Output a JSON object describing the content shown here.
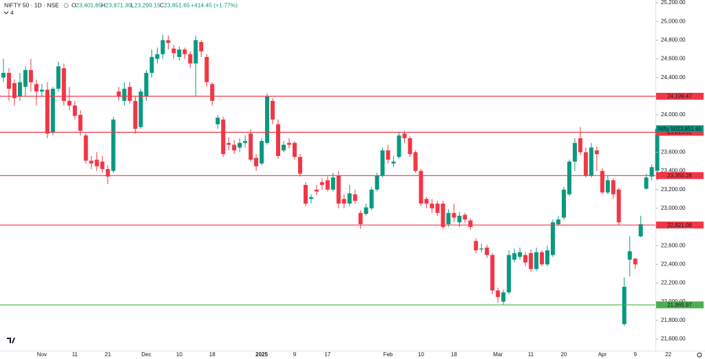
{
  "header": {
    "symbol": "NIFTY 50 · 1D · NSE",
    "open_label": "O",
    "open": "23,401.85",
    "high_label": "H",
    "high": "23,871.30",
    "low_label": "L",
    "low": "23,299.15",
    "close_label": "C",
    "close": "23,851.65",
    "change": "+414.45 (+1.77%)",
    "indicators_count": "4"
  },
  "chart_data": {
    "type": "candlestick",
    "up_color": "#089981",
    "down_color": "#f23645",
    "grid": false,
    "ylim": [
      21475,
      25230
    ],
    "yticks": [
      {
        "value": 21600,
        "label": "21,600.00"
      },
      {
        "value": 21800,
        "label": "21,800.00"
      },
      {
        "value": 22000,
        "label": "22,000.00"
      },
      {
        "value": 22200,
        "label": "22,200.00"
      },
      {
        "value": 22400,
        "label": "22,400.00"
      },
      {
        "value": 22600,
        "label": "22,600.00"
      },
      {
        "value": 22800,
        "label": "22,800.00"
      },
      {
        "value": 23000,
        "label": "23,000.00"
      },
      {
        "value": 23200,
        "label": "23,200.00"
      },
      {
        "value": 23400,
        "label": "23,400.00"
      },
      {
        "value": 23600,
        "label": "23,600.00"
      },
      {
        "value": 23800,
        "label": "23,800.00"
      },
      {
        "value": 24000,
        "label": "24,000.00"
      },
      {
        "value": 24200,
        "label": "24,200.00"
      },
      {
        "value": 24400,
        "label": "24,400.00"
      },
      {
        "value": 24600,
        "label": "24,600.00"
      },
      {
        "value": 24800,
        "label": "24,800.00"
      },
      {
        "value": 25000,
        "label": "25,000.00"
      },
      {
        "value": 25200,
        "label": "25,200.00"
      }
    ],
    "categories": [
      null,
      null,
      null,
      null,
      null,
      null,
      null,
      "Nov",
      null,
      null,
      null,
      null,
      null,
      "11",
      null,
      null,
      null,
      null,
      null,
      "21",
      null,
      null,
      null,
      null,
      null,
      null,
      "Dec",
      null,
      null,
      null,
      null,
      null,
      "10",
      null,
      null,
      null,
      null,
      null,
      "18",
      null,
      null,
      null,
      null,
      null,
      null,
      null,
      null,
      "2025",
      null,
      null,
      null,
      null,
      null,
      "9",
      null,
      null,
      null,
      null,
      null,
      "17",
      null,
      null,
      null,
      null,
      null,
      null,
      null,
      null,
      null,
      null,
      "Feb",
      null,
      null,
      null,
      null,
      null,
      "10",
      null,
      null,
      null,
      null,
      null,
      "18",
      null,
      null,
      null,
      null,
      null,
      null,
      null,
      "Mar",
      null,
      null,
      null,
      null,
      null,
      "11",
      null,
      null,
      null,
      null,
      null,
      "20",
      null,
      null,
      null,
      null,
      null,
      null,
      "Apr",
      null,
      null,
      null,
      null,
      null,
      "9",
      null,
      null,
      null,
      null,
      null,
      "22"
    ],
    "open": [
      24400,
      24450,
      24340,
      24200,
      24300,
      24480,
      24330,
      24250,
      24270,
      23810,
      24280,
      24500,
      24150,
      24100,
      24000,
      23780,
      23510,
      23520,
      23500,
      23420,
      23400,
      24250,
      24150,
      24300,
      24150,
      23870,
      24200,
      24450,
      24600,
      24650,
      24800,
      24710,
      24620,
      24700,
      24650,
      24550,
      24780,
      24620,
      24330,
      23900,
      23950,
      23700,
      23680,
      23650,
      23700,
      23800,
      23540,
      23480,
      23700,
      24150,
      23900,
      23620,
      23700,
      23700,
      23550,
      23250,
      23100,
      23200,
      23280,
      23300,
      23200,
      23350,
      23100,
      23050,
      23150,
      22950,
      22940,
      23000,
      23200,
      23350,
      23620,
      23480,
      23550,
      23800,
      23750,
      23600,
      23400,
      23100,
      23050,
      23050,
      23050,
      22830,
      22950,
      22850,
      22930,
      22870,
      22650,
      22560,
      22580,
      22500,
      22120,
      22000,
      22100,
      22450,
      22480,
      22500,
      22520,
      22350,
      22530,
      22400,
      22500,
      22830,
      22900,
      23150,
      23500,
      23750,
      23600,
      23350,
      23620,
      23400,
      23170,
      23300,
      23200,
      21760,
      22450,
      22460,
      22700,
      23210,
      23340,
      23401.85,
      null,
      null
    ],
    "high": [
      24600,
      24500,
      24380,
      24450,
      24520,
      24600,
      24380,
      24330,
      24350,
      24300,
      24570,
      24550,
      24300,
      24150,
      24050,
      23800,
      23560,
      23600,
      23560,
      23460,
      23980,
      24300,
      24350,
      24350,
      24200,
      24280,
      24480,
      24700,
      24720,
      24860,
      24850,
      24750,
      24730,
      24720,
      24680,
      24850,
      24800,
      24650,
      24350,
      24000,
      23980,
      23760,
      23730,
      23750,
      23780,
      23850,
      23580,
      23750,
      24230,
      24180,
      23950,
      23720,
      23750,
      23720,
      23580,
      23280,
      23150,
      23250,
      23320,
      23340,
      23380,
      23400,
      23150,
      23250,
      23200,
      22980,
      23050,
      23230,
      23380,
      23650,
      23680,
      23560,
      23810,
      23830,
      23770,
      23620,
      23420,
      23120,
      23100,
      23080,
      23080,
      22990,
      23050,
      22960,
      22950,
      22890,
      22680,
      22620,
      22610,
      22520,
      22150,
      22130,
      22550,
      22570,
      22580,
      22530,
      22560,
      22580,
      22550,
      22600,
      22880,
      22920,
      23230,
      23520,
      23750,
      23870,
      23650,
      23700,
      23660,
      23430,
      23350,
      23320,
      23220,
      22260,
      22700,
      22470,
      22920,
      23370,
      23470,
      23871.3,
      null,
      null
    ],
    "low": [
      24350,
      24150,
      24100,
      24150,
      24200,
      24250,
      24100,
      24200,
      23750,
      23780,
      24250,
      24100,
      24050,
      23950,
      23780,
      23480,
      23420,
      23400,
      23380,
      23260,
      23380,
      24150,
      24100,
      24120,
      23800,
      23850,
      24150,
      24400,
      24550,
      24600,
      24700,
      24600,
      24580,
      24600,
      24500,
      24200,
      24620,
      24300,
      24100,
      23850,
      23550,
      23620,
      23580,
      23600,
      23650,
      23500,
      23400,
      23460,
      23680,
      23900,
      23530,
      23600,
      23640,
      23520,
      23340,
      23020,
      23050,
      23140,
      23200,
      23180,
      23180,
      23000,
      23000,
      23020,
      23050,
      22780,
      22920,
      22980,
      23180,
      23330,
      23480,
      23440,
      23530,
      23700,
      23550,
      23380,
      23020,
      23000,
      22950,
      22920,
      22780,
      22800,
      22850,
      22800,
      22840,
      22770,
      22520,
      22530,
      22470,
      22080,
      21990,
      21970,
      22080,
      22420,
      22450,
      22380,
      22320,
      22330,
      22380,
      22380,
      22480,
      22810,
      22880,
      23130,
      23400,
      23570,
      23330,
      23330,
      23400,
      23150,
      23150,
      23100,
      22820,
      21740,
      22270,
      22350,
      22690,
      23200,
      23300,
      23299.15,
      null,
      null
    ],
    "close": [
      24450,
      24280,
      24180,
      24350,
      24480,
      24350,
      24250,
      24270,
      23800,
      24280,
      24520,
      24150,
      24100,
      23990,
      23830,
      23510,
      23480,
      23450,
      23420,
      23340,
      23950,
      24200,
      24280,
      24150,
      23850,
      24250,
      24450,
      24620,
      24650,
      24800,
      24770,
      24660,
      24700,
      24650,
      24550,
      24800,
      24680,
      24350,
      24150,
      23970,
      23580,
      23680,
      23620,
      23700,
      23720,
      23520,
      23450,
      23720,
      24200,
      23950,
      23560,
      23680,
      23680,
      23550,
      23370,
      23050,
      23120,
      23180,
      23250,
      23200,
      23330,
      23050,
      23050,
      23160,
      23080,
      22830,
      23010,
      23200,
      23350,
      23620,
      23520,
      23500,
      23780,
      23750,
      23580,
      23400,
      23050,
      23050,
      23000,
      22950,
      22800,
      22950,
      22900,
      22920,
      22880,
      22800,
      22550,
      22570,
      22500,
      22120,
      22050,
      22100,
      22500,
      22520,
      22530,
      22420,
      22350,
      22530,
      22400,
      22550,
      22850,
      22880,
      23200,
      23500,
      23700,
      23600,
      23350,
      23650,
      23580,
      23170,
      23300,
      23150,
      22850,
      22160,
      22540,
      22400,
      22830,
      23330,
      23440,
      23851.65,
      null,
      null
    ],
    "levels": [
      {
        "value": 24199.47,
        "label": "24,199.47",
        "color": "#f23645"
      },
      {
        "value": 23813.81,
        "label": "23,813.81",
        "color": "#f23645"
      },
      {
        "value": 23350.28,
        "label": "23,350.28",
        "color": "#f23645"
      },
      {
        "value": 22821.08,
        "label": "22,821.08",
        "color": "#f23645"
      },
      {
        "value": 21965.97,
        "label": "21,965.97",
        "color": "#4caf50"
      }
    ],
    "last_price": {
      "name": "Nifty 50",
      "value": 23851.65,
      "label": "23,851.65",
      "color": "#089981"
    }
  }
}
